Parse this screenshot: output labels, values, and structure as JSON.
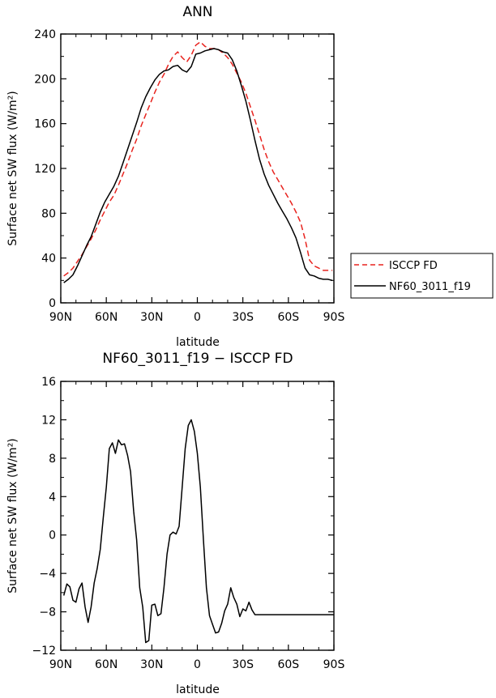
{
  "chart_data": [
    {
      "type": "line",
      "title": "ANN",
      "xlabel": "latitude",
      "ylabel": "Surface net SW flux (W/m²)",
      "xlim": [
        90,
        -90
      ],
      "ylim": [
        0,
        240
      ],
      "xticks": [
        90,
        60,
        30,
        0,
        -30,
        -60,
        -90
      ],
      "xtick_labels": [
        "90N",
        "60N",
        "30N",
        "0",
        "30S",
        "60S",
        "90S"
      ],
      "yticks": [
        0,
        40,
        80,
        120,
        160,
        200,
        240
      ],
      "ytick_labels": [
        "0",
        "40",
        "80",
        "120",
        "160",
        "200",
        "240"
      ],
      "legend": "outside-right",
      "x": [
        88,
        85,
        82,
        79,
        76,
        73,
        70,
        67,
        64,
        61,
        58,
        55,
        52,
        49,
        46,
        43,
        40,
        37,
        34,
        31,
        28,
        25,
        22,
        19,
        16,
        13,
        10,
        7,
        4,
        1,
        -2,
        -5,
        -8,
        -11,
        -14,
        -17,
        -20,
        -23,
        -26,
        -29,
        -32,
        -35,
        -38,
        -41,
        -44,
        -47,
        -50,
        -53,
        -56,
        -59,
        -62,
        -65,
        -68,
        -71,
        -74,
        -77,
        -80,
        -83,
        -86,
        -89
      ],
      "series": [
        {
          "name": "ISCCP FD",
          "color": "#e8231e",
          "dash": true,
          "values": [
            24,
            27,
            31,
            37,
            43,
            50,
            57,
            65,
            74,
            82,
            90,
            96,
            105,
            115,
            125,
            136,
            146,
            158,
            168,
            178,
            188,
            197,
            204,
            213,
            220,
            224,
            219,
            215,
            221,
            230,
            233,
            229,
            227,
            227,
            226,
            223,
            219,
            213,
            205,
            197,
            187,
            175,
            163,
            150,
            137,
            126,
            117,
            110,
            103,
            96,
            89,
            81,
            72,
            57,
            38,
            33,
            31,
            29,
            29,
            29
          ]
        },
        {
          "name": "NF60_3011_f19",
          "color": "#000000",
          "dash": false,
          "values": [
            18,
            21,
            25,
            33,
            42,
            51,
            59,
            70,
            81,
            90,
            97,
            104,
            113,
            125,
            137,
            149,
            161,
            174,
            184,
            192,
            199,
            204,
            207,
            208,
            211,
            212,
            208,
            206,
            211,
            222,
            223,
            225,
            226,
            227,
            226,
            224,
            223,
            217,
            207,
            194,
            180,
            163,
            145,
            128,
            115,
            105,
            97,
            89,
            82,
            75,
            67,
            58,
            45,
            31,
            25,
            24,
            22,
            21,
            21,
            20
          ]
        }
      ]
    },
    {
      "type": "line",
      "title": "NF60_3011_f19 − ISCCP FD",
      "xlabel": "latitude",
      "ylabel": "Surface net SW flux (W/m²)",
      "xlim": [
        90,
        -90
      ],
      "ylim": [
        -12,
        16
      ],
      "xticks": [
        90,
        60,
        30,
        0,
        -30,
        -60,
        -90
      ],
      "xtick_labels": [
        "90N",
        "60N",
        "30N",
        "0",
        "30S",
        "60S",
        "90S"
      ],
      "yticks": [
        -12,
        -8,
        -4,
        0,
        4,
        8,
        12,
        16
      ],
      "ytick_labels": [
        "−12",
        "−8",
        "−4",
        "0",
        "4",
        "8",
        "12",
        "16"
      ],
      "x": [
        88,
        86,
        84,
        82,
        80,
        78,
        76,
        74,
        72,
        70,
        68,
        66,
        64,
        62,
        60,
        58,
        56,
        54,
        52,
        50,
        48,
        46,
        44,
        42,
        40,
        38,
        36,
        34,
        32,
        30,
        28,
        26,
        24,
        22,
        20,
        18,
        16,
        14,
        12,
        10,
        8,
        6,
        4,
        2,
        0,
        -2,
        -4,
        -6,
        -8,
        -10,
        -12,
        -14,
        -16,
        -18,
        -20,
        -22,
        -24,
        -26,
        -28,
        -30,
        -32,
        -34,
        -36,
        -38,
        -40,
        -42,
        -44,
        -46,
        -48,
        -50,
        -52,
        -54,
        -56,
        -58,
        -60,
        -62,
        -64,
        -66,
        -68,
        -70,
        -72,
        -74,
        -76,
        -78,
        -80,
        -82,
        -84,
        -86,
        -88,
        -90
      ],
      "series": [
        {
          "name": "",
          "color": "#000000",
          "dash": false,
          "values": [
            -6.3,
            -5.1,
            -5.4,
            -6.8,
            -7.0,
            -5.6,
            -5.0,
            -7.5,
            -9.1,
            -7.5,
            -5.0,
            -3.5,
            -1.5,
            1.8,
            5.0,
            9.0,
            9.6,
            8.5,
            9.9,
            9.4,
            9.5,
            8.3,
            6.6,
            2.5,
            -0.5,
            -5.5,
            -7.5,
            -11.2,
            -11.0,
            -7.3,
            -7.2,
            -8.4,
            -8.2,
            -5.5,
            -2.0,
            0.0,
            0.3,
            0.1,
            0.9,
            5.0,
            9.0,
            11.4,
            12.0,
            10.8,
            8.5,
            5.0,
            -0.5,
            -5.5,
            -8.4,
            -9.3,
            -10.2,
            -10.1,
            -9.2,
            -7.9,
            -7.2,
            -5.5,
            -6.5,
            -7.2,
            -8.5,
            -7.7,
            -7.9,
            -7.0,
            -7.8,
            -8.3,
            -8.3,
            -8.3,
            -8.3,
            -8.3,
            -8.3,
            -8.3,
            -8.3,
            -8.3,
            -8.3,
            -8.3,
            -8.3,
            -8.3,
            -8.3,
            -8.3,
            -8.3,
            -8.3,
            -8.3,
            -8.3,
            -8.3,
            -8.3,
            -8.3,
            -8.3,
            -8.3,
            -8.3,
            -8.3,
            -8.3
          ]
        }
      ]
    }
  ]
}
